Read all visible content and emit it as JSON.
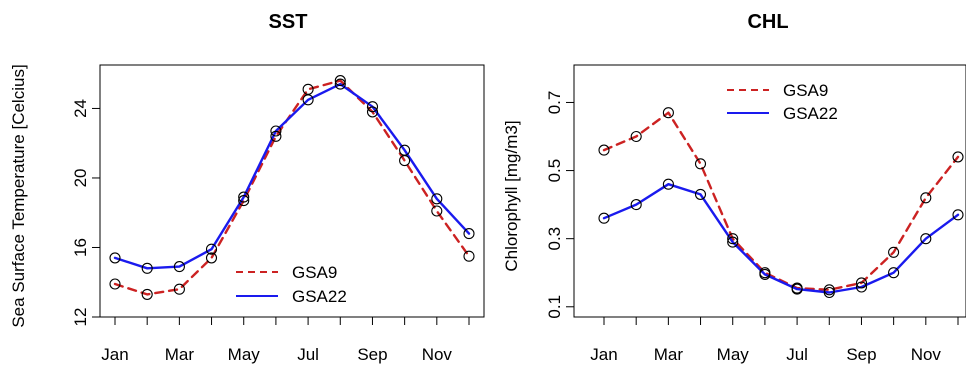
{
  "chart_data": [
    {
      "type": "line",
      "title": "SST",
      "xlabel": "",
      "ylabel": "Sea Surface Temperature [Celcius]",
      "categories": [
        "Jan",
        "Feb",
        "Mar",
        "Apr",
        "May",
        "Jun",
        "Jul",
        "Aug",
        "Sep",
        "Oct",
        "Nov",
        "Dec"
      ],
      "x_tick_labels": [
        "Jan",
        "Mar",
        "May",
        "Jul",
        "Sep",
        "Nov"
      ],
      "y_ticks": [
        12,
        16,
        20,
        24
      ],
      "ylim": [
        12,
        26.5
      ],
      "legend_placement": "bottom-right",
      "grid": false,
      "series": [
        {
          "name": "GSA9",
          "style": "dashed",
          "color": "#cc2222",
          "values": [
            13.9,
            13.3,
            13.6,
            15.4,
            18.7,
            22.4,
            25.1,
            25.6,
            23.8,
            21.0,
            18.1,
            15.5
          ]
        },
        {
          "name": "GSA22",
          "style": "solid",
          "color": "#1a1aee",
          "values": [
            15.4,
            14.8,
            14.9,
            15.9,
            18.9,
            22.7,
            24.5,
            25.4,
            24.1,
            21.6,
            18.8,
            16.8
          ]
        }
      ]
    },
    {
      "type": "line",
      "title": "CHL",
      "xlabel": "",
      "ylabel": "Chlorophyll [mg/m3]",
      "categories": [
        "Jan",
        "Feb",
        "Mar",
        "Apr",
        "May",
        "Jun",
        "Jul",
        "Aug",
        "Sep",
        "Oct",
        "Nov",
        "Dec"
      ],
      "x_tick_labels": [
        "Jan",
        "Mar",
        "May",
        "Jul",
        "Sep",
        "Nov"
      ],
      "y_ticks": [
        0.1,
        0.3,
        0.5,
        0.7
      ],
      "ylim": [
        0.07,
        0.81
      ],
      "legend_placement": "top-center",
      "grid": false,
      "series": [
        {
          "name": "GSA9",
          "style": "dashed",
          "color": "#cc2222",
          "values": [
            0.56,
            0.6,
            0.67,
            0.52,
            0.3,
            0.2,
            0.155,
            0.15,
            0.17,
            0.26,
            0.42,
            0.54
          ]
        },
        {
          "name": "GSA22",
          "style": "solid",
          "color": "#1a1aee",
          "values": [
            0.36,
            0.4,
            0.46,
            0.43,
            0.29,
            0.195,
            0.152,
            0.142,
            0.158,
            0.2,
            0.3,
            0.37
          ]
        }
      ]
    }
  ]
}
